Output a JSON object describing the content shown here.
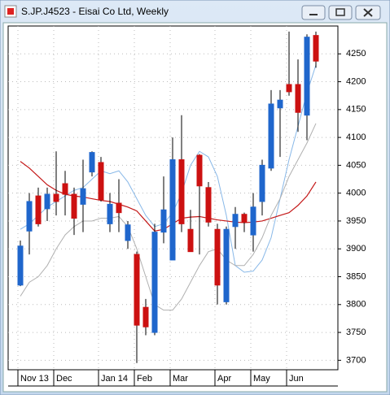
{
  "chart_data": {
    "type": "candlestick",
    "title": "S.JP.J4523 - Eisai Co Ltd, Weekly",
    "categories": [
      "Nov 13",
      null,
      null,
      null,
      "Dec",
      null,
      null,
      null,
      null,
      "Jan 14",
      null,
      null,
      null,
      "Feb",
      null,
      null,
      null,
      "Mar",
      null,
      null,
      null,
      null,
      "Apr",
      null,
      null,
      null,
      "May",
      null,
      null,
      null,
      "Jun",
      null,
      null,
      null
    ],
    "open": [
      3835,
      3932,
      3995,
      3972,
      3998,
      4017,
      3998,
      3980,
      4038,
      4055,
      3945,
      3982,
      3915,
      3890,
      3795,
      3750,
      3930,
      3880,
      4060,
      3935,
      4068,
      4010,
      3935,
      3805,
      3940,
      3962,
      3925,
      3985,
      4045,
      4153,
      4195,
      4195,
      4140,
      4283
    ],
    "high": [
      3915,
      4000,
      4010,
      4010,
      4075,
      4040,
      4010,
      4060,
      4075,
      4065,
      4000,
      4025,
      3950,
      3895,
      3810,
      3945,
      4030,
      4100,
      4140,
      3970,
      4070,
      4020,
      3945,
      3940,
      3975,
      3965,
      4000,
      4060,
      4185,
      4185,
      4290,
      4240,
      4285,
      4290
    ],
    "low": [
      3833,
      3890,
      3940,
      3950,
      3960,
      3960,
      3925,
      3930,
      4030,
      3985,
      3930,
      3930,
      3900,
      3695,
      3745,
      3745,
      3910,
      3880,
      3930,
      3895,
      3890,
      3940,
      3800,
      3800,
      3900,
      3930,
      3895,
      3960,
      4040,
      4065,
      4175,
      4110,
      4095,
      4225
    ],
    "close": [
      3905,
      3985,
      3945,
      3998,
      3985,
      3998,
      3955,
      4008,
      4073,
      3988,
      3980,
      3965,
      3943,
      3763,
      3760,
      3930,
      3970,
      4060,
      3945,
      3895,
      4013,
      3948,
      3835,
      3935,
      3962,
      3948,
      3975,
      4050,
      4160,
      4167,
      4182,
      4145,
      4280,
      4237
    ],
    "up_color": "#1f66cc",
    "down_color": "#cc1111",
    "series": [
      {
        "color": "#88b8e8",
        "values": [
          3935,
          3945,
          3960,
          3975,
          3985,
          3995,
          4005,
          4010,
          4025,
          4040,
          4035,
          4040,
          4020,
          3990,
          3960,
          3940,
          3945,
          3965,
          4000,
          4050,
          4075,
          4065,
          4030,
          3960,
          3870,
          3858,
          3860,
          3880,
          3920,
          3990,
          4060,
          4120,
          4180,
          4230
        ]
      },
      {
        "color": "#c41818",
        "values": [
          4057,
          4045,
          4030,
          4015,
          4005,
          3998,
          3995,
          3993,
          3990,
          3987,
          3985,
          3980,
          3975,
          3968,
          3950,
          3932,
          3935,
          3945,
          3955,
          3957,
          3958,
          3955,
          3952,
          3950,
          3948,
          3947,
          3948,
          3950,
          3955,
          3960,
          3965,
          3978,
          3995,
          4020
        ]
      },
      {
        "color": "#b0b0b0",
        "values": [
          3815,
          3840,
          3850,
          3870,
          3900,
          3925,
          3940,
          3950,
          3950,
          3955,
          3955,
          3958,
          3940,
          3900,
          3850,
          3800,
          3790,
          3790,
          3810,
          3840,
          3870,
          3895,
          3900,
          3880,
          3870,
          3870,
          3890,
          3920,
          3960,
          3990,
          4030,
          4060,
          4090,
          4125
        ]
      }
    ],
    "ylim": [
      3683,
      4300
    ],
    "yticks": [
      3700,
      3750,
      3800,
      3850,
      3900,
      3950,
      4000,
      4050,
      4100,
      4150,
      4200,
      4250
    ],
    "grid": true
  }
}
